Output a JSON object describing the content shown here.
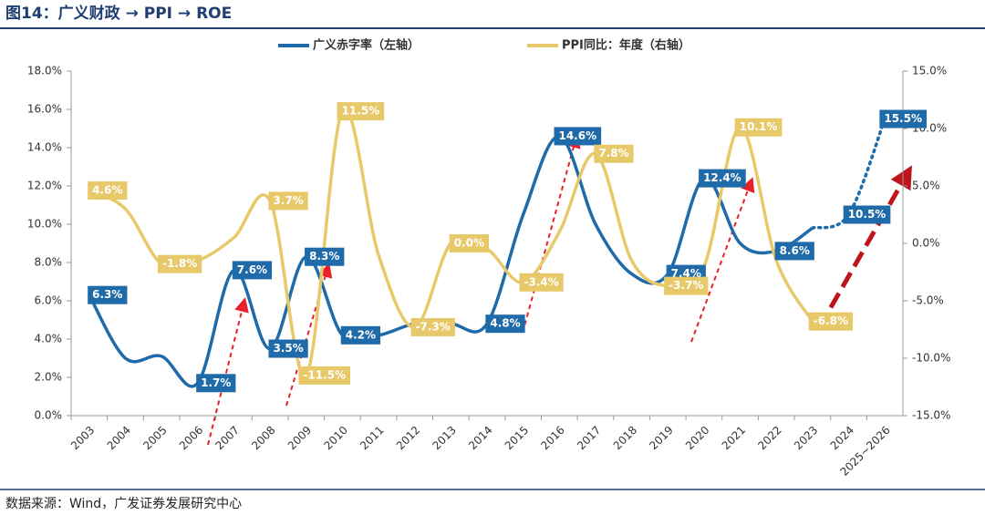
{
  "chart_data": {
    "type": "line",
    "title": "图14：广义财政 → PPI → ROE",
    "source": "数据来源：Wind，广发证券发展研究中心",
    "categories": [
      "2003",
      "2004",
      "2005",
      "2006",
      "2007",
      "2008",
      "2009",
      "2010",
      "2011",
      "2012",
      "2013",
      "2014",
      "2015",
      "2016",
      "2017",
      "2018",
      "2019",
      "2020",
      "2021",
      "2022",
      "2023",
      "2024",
      "2025~2026"
    ],
    "ylim": [
      0,
      18
    ],
    "yticks": [
      {
        "value": 0,
        "label": "0.0%"
      },
      {
        "value": 2,
        "label": "2.0%"
      },
      {
        "value": 4,
        "label": "4.0%"
      },
      {
        "value": 6,
        "label": "6.0%"
      },
      {
        "value": 8,
        "label": "8.0%"
      },
      {
        "value": 10,
        "label": "10.0%"
      },
      {
        "value": 12,
        "label": "12.0%"
      },
      {
        "value": 14,
        "label": "14.0%"
      },
      {
        "value": 16,
        "label": "16.0%"
      },
      {
        "value": 18,
        "label": "18.0%"
      }
    ],
    "y2lim": [
      -15,
      15
    ],
    "y2ticks": [
      {
        "value": -15,
        "label": "-15.0%"
      },
      {
        "value": -10,
        "label": "-10.0%"
      },
      {
        "value": -5,
        "label": "-5.0%"
      },
      {
        "value": 0,
        "label": "0.0%"
      },
      {
        "value": 5,
        "label": "5.0%"
      },
      {
        "value": 10,
        "label": "10.0%"
      },
      {
        "value": 15,
        "label": "15.0%"
      }
    ],
    "series": [
      {
        "name": "广义赤字率（左轴）",
        "color": "#1f6aa8",
        "axis": "y",
        "dotted_from": 20,
        "values": [
          6.3,
          3.0,
          3.1,
          1.7,
          7.6,
          3.5,
          8.3,
          4.2,
          4.2,
          4.8,
          4.8,
          4.8,
          10.5,
          14.6,
          10.0,
          7.4,
          7.4,
          12.4,
          9.0,
          8.6,
          9.8,
          10.5,
          15.5
        ],
        "value_labels": [
          "6.3%",
          null,
          null,
          "1.7%",
          "7.6%",
          "3.5%",
          "8.3%",
          "4.2%",
          null,
          null,
          null,
          "4.8%",
          null,
          "14.6%",
          null,
          null,
          "7.4%",
          "12.4%",
          null,
          "8.6%",
          null,
          "10.5%",
          "15.5%"
        ]
      },
      {
        "name": "PPI同比：年度（右轴）",
        "color": "#e8c96a",
        "axis": "y2",
        "values": [
          4.6,
          3.0,
          -1.8,
          -1.5,
          0.5,
          3.7,
          -11.5,
          11.5,
          -1.0,
          -7.3,
          0.0,
          -0.5,
          -3.4,
          1.0,
          7.8,
          -1.5,
          -3.7,
          -2.0,
          10.1,
          -1.5,
          -6.8,
          null,
          null
        ],
        "value_labels": [
          "4.6%",
          null,
          "-1.8%",
          null,
          null,
          "3.7%",
          "-11.5%",
          "11.5%",
          null,
          "-7.3%",
          "0.0%",
          null,
          "-3.4%",
          null,
          "7.8%",
          null,
          "-3.7%",
          null,
          "10.1%",
          null,
          "-6.8%",
          null,
          null
        ]
      }
    ]
  }
}
